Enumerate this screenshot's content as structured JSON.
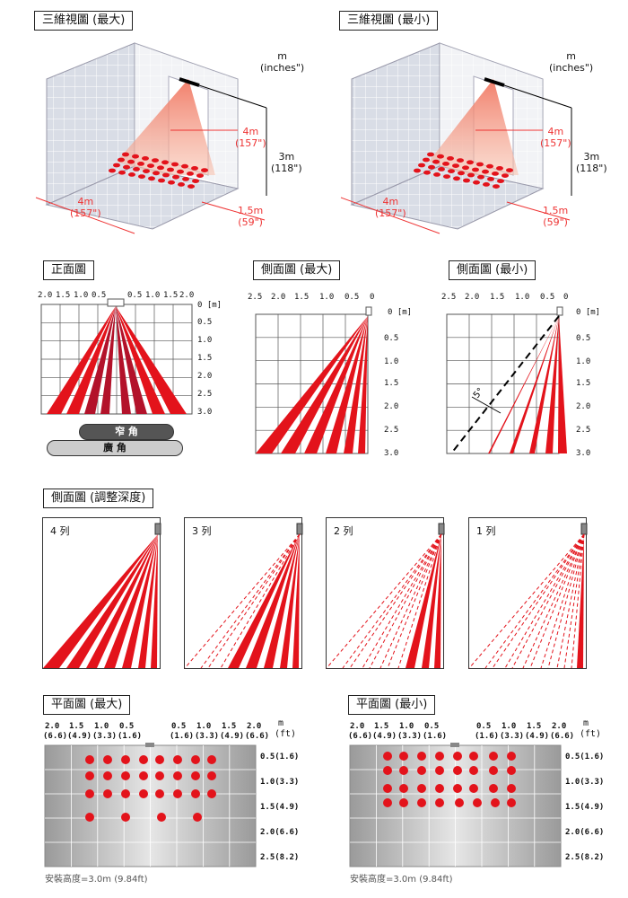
{
  "view3d": {
    "max": {
      "title": "三維視圖 (最大)",
      "unit": "m",
      "unit2": "(inches\")",
      "dims": {
        "depth": "4m",
        "depth_in": "(157\")",
        "height": "3m",
        "height_in": "(118\")",
        "floor_depth": "4m",
        "floor_depth_in": "(157\")",
        "width": "1.5m",
        "width_in": "(59\")"
      }
    },
    "min": {
      "title": "三維視圖 (最小)",
      "unit": "m",
      "unit2": "(inches\")",
      "dims": {
        "depth": "4m",
        "depth_in": "(157\")",
        "height": "3m",
        "height_in": "(118\")",
        "floor_depth": "4m",
        "floor_depth_in": "(157\")",
        "width": "1.5m",
        "width_in": "(59\")"
      }
    }
  },
  "front": {
    "title": "正面圖",
    "top_ticks": [
      "2.0",
      "1.5",
      "1.0",
      "0.5",
      "0.5",
      "1.0",
      "1.5",
      "2.0"
    ],
    "unit": "0 [m]",
    "right_ticks": [
      "0.5",
      "1.0",
      "1.5",
      "2.0",
      "2.5",
      "3.0"
    ],
    "narrow": "窄 角",
    "wide": "廣 角"
  },
  "side_max": {
    "title": "側面圖 (最大)",
    "top_ticks": [
      "2.5",
      "2.0",
      "1.5",
      "1.0",
      "0.5",
      "0"
    ],
    "unit": "0 [m]",
    "right_ticks": [
      "0.5",
      "1.0",
      "1.5",
      "2.0",
      "2.5",
      "3.0"
    ]
  },
  "side_min": {
    "title": "側面圖 (最小)",
    "top_ticks": [
      "2.5",
      "2.0",
      "1.5",
      "1.0",
      "0.5",
      "0"
    ],
    "unit": "0 [m]",
    "right_ticks": [
      "0.5",
      "1.0",
      "1.5",
      "2.0",
      "2.5",
      "3.0"
    ],
    "angle": "5°"
  },
  "depth": {
    "title": "側面圖 (調整深度)",
    "panels": [
      "4 列",
      "3 列",
      "2 列",
      "1 列"
    ]
  },
  "plan_max": {
    "title": "平面圖 (最大)",
    "top_ticks": [
      "2.0",
      "(6.6)",
      "1.5",
      "(4.9)",
      "1.0",
      "(3.3)",
      "0.5",
      "(1.6)",
      "0.5",
      "(1.6)",
      "1.0",
      "(3.3)",
      "1.5",
      "(4.9)",
      "2.0",
      "(6.6)"
    ],
    "unit": "m",
    "unit2": "(ft)",
    "right_ticks": [
      "0.5(1.6)",
      "1.0(3.3)",
      "1.5(4.9)",
      "2.0(6.6)",
      "2.5(8.2)"
    ],
    "note": "安裝高度=3.0m (9.84ft)"
  },
  "plan_min": {
    "title": "平面圖 (最小)",
    "top_ticks": [
      "2.0",
      "(6.6)",
      "1.5",
      "(4.9)",
      "1.0",
      "(3.3)",
      "0.5",
      "(1.6)",
      "0.5",
      "(1.6)",
      "1.0",
      "(3.3)",
      "1.5",
      "(4.9)",
      "2.0",
      "(6.6)"
    ],
    "unit": "m",
    "unit2": "(ft)",
    "right_ticks": [
      "0.5(1.6)",
      "1.0(3.3)",
      "1.5(4.9)",
      "2.0(6.6)",
      "2.5(8.2)"
    ],
    "note": "安裝高度=3.0m (9.84ft)"
  },
  "colors": {
    "beam": "#e3131b",
    "beam_dark": "#b3122a",
    "grid": "#555",
    "pink": "#f5b3a0"
  }
}
